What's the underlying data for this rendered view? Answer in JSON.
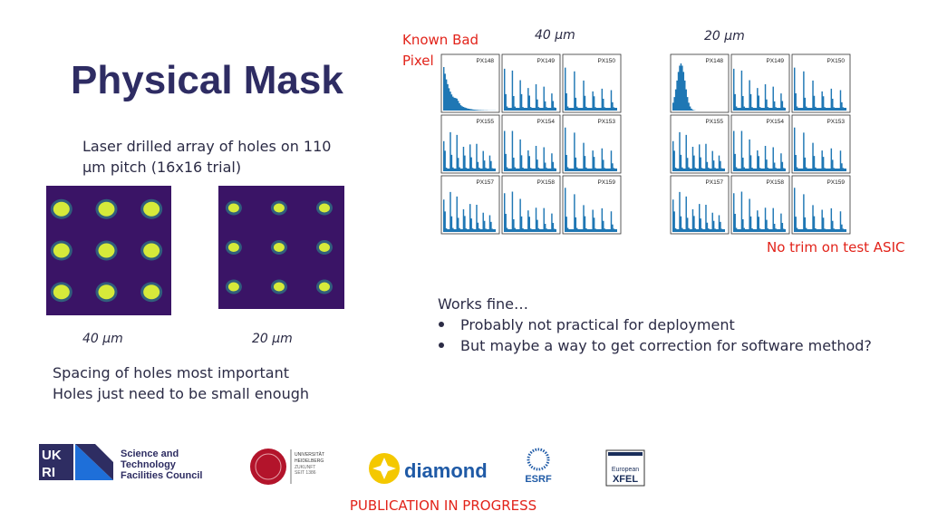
{
  "title": "Physical Mask",
  "description": [
    "Laser drilled array of holes on 110",
    "µm pitch (16x16 trial)"
  ],
  "images": [
    {
      "label": "40 µm"
    },
    {
      "label": "20 µm"
    }
  ],
  "notes": [
    "Spacing of holes most important",
    "Holes just need to be small enough"
  ],
  "histograms": {
    "annotation": [
      "Known Bad",
      "Pixel"
    ],
    "groups": [
      {
        "label": "40 µm",
        "pixels": [
          "PX148",
          "PX149",
          "PX150",
          "PX155",
          "PX154",
          "PX153",
          "PX157",
          "PX158",
          "PX159"
        ]
      },
      {
        "label": "20 µm",
        "pixels": [
          "PX148",
          "PX149",
          "PX150",
          "PX155",
          "PX154",
          "PX153",
          "PX157",
          "PX158",
          "PX159"
        ]
      }
    ],
    "footnote": "No trim on test ASIC"
  },
  "findings": {
    "heading": "Works fine…",
    "bullets": [
      "Probably not practical for deployment",
      "But maybe a way to get correction for software method?"
    ]
  },
  "logos": {
    "ukri": [
      "UK",
      "RI"
    ],
    "stfc": [
      "Science and",
      "Technology",
      "Facilities Council"
    ],
    "heidelberg": [
      "UNIVERSITÄT",
      "HEIDELBERG",
      "ZUKUNFT",
      "SEIT 1386"
    ],
    "diamond": "diamond",
    "esrf": "ESRF",
    "xfel": [
      "European",
      "XFEL"
    ]
  },
  "footer": "PUBLICATION IN PROGRESS"
}
